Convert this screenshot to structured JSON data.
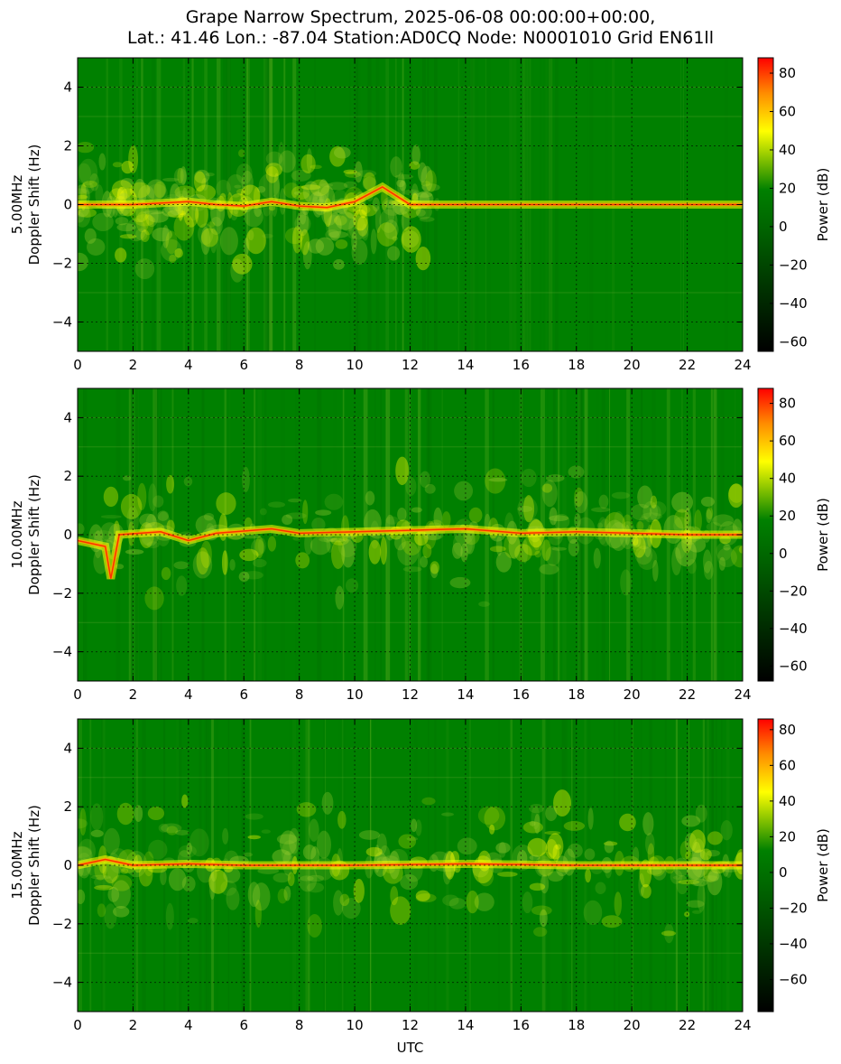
{
  "figure": {
    "title_line1": "Grape Narrow Spectrum, 2025-06-08 00:00:00+00:00,",
    "title_line2": "Lat.: 41.46 Lon.: -87.04 Station:AD0CQ Node: N0001010 Grid EN61ll",
    "xlabel": "UTC"
  },
  "colors": {
    "background": "#008000",
    "colormap": [
      "#000000",
      "#006400",
      "#008000",
      "#ffff00",
      "#ff8c00",
      "#ff0000"
    ]
  },
  "chart_data": [
    {
      "type": "heatmap",
      "name": "5.00MHz",
      "ylabel_line1": "5.00MHz",
      "ylabel_line2": "Doppler Shift (Hz)",
      "colorbar_label": "Power (dB)",
      "xlim": [
        0,
        24
      ],
      "ylim": [
        -5,
        5
      ],
      "xticks": [
        "0",
        "2",
        "4",
        "6",
        "8",
        "10",
        "12",
        "14",
        "16",
        "18",
        "20",
        "22",
        "24"
      ],
      "yticks": [
        "−4",
        "−2",
        "0",
        "2",
        "4"
      ],
      "clim": [
        -65,
        88
      ],
      "cticks": [
        "−60",
        "−40",
        "−20",
        "0",
        "20",
        "40",
        "60",
        "80"
      ],
      "grid": true,
      "trace": [
        [
          0,
          0
        ],
        [
          2,
          0
        ],
        [
          3,
          0.05
        ],
        [
          4,
          0.1
        ],
        [
          5,
          0.0
        ],
        [
          6,
          -0.05
        ],
        [
          7,
          0.1
        ],
        [
          8,
          -0.05
        ],
        [
          9,
          -0.1
        ],
        [
          10,
          0.1
        ],
        [
          11,
          0.6
        ],
        [
          12,
          0
        ],
        [
          24,
          0
        ]
      ],
      "active_until": 13
    },
    {
      "type": "heatmap",
      "name": "10.00MHz",
      "ylabel_line1": "10.00MHz",
      "ylabel_line2": "Doppler Shift (Hz)",
      "colorbar_label": "Power (dB)",
      "xlim": [
        0,
        24
      ],
      "ylim": [
        -5,
        5
      ],
      "xticks": [
        "0",
        "2",
        "4",
        "6",
        "8",
        "10",
        "12",
        "14",
        "16",
        "18",
        "20",
        "22",
        "24"
      ],
      "yticks": [
        "−4",
        "−2",
        "0",
        "2",
        "4"
      ],
      "clim": [
        -68,
        88
      ],
      "cticks": [
        "−60",
        "−40",
        "−20",
        "0",
        "20",
        "40",
        "60",
        "80"
      ],
      "grid": true,
      "trace": [
        [
          0,
          -0.2
        ],
        [
          1,
          -0.4
        ],
        [
          1.2,
          -1.5
        ],
        [
          1.5,
          0
        ],
        [
          3,
          0.1
        ],
        [
          4,
          -0.2
        ],
        [
          5,
          0.05
        ],
        [
          7,
          0.2
        ],
        [
          8,
          0.05
        ],
        [
          12,
          0.15
        ],
        [
          14,
          0.2
        ],
        [
          16,
          0.05
        ],
        [
          18,
          0.1
        ],
        [
          20,
          0.05
        ],
        [
          22,
          0
        ],
        [
          24,
          0
        ]
      ],
      "active_until": 24
    },
    {
      "type": "heatmap",
      "name": "15.00MHz",
      "ylabel_line1": "15.00MHz",
      "ylabel_line2": "Doppler Shift (Hz)",
      "colorbar_label": "Power (dB)",
      "xlim": [
        0,
        24
      ],
      "ylim": [
        -5,
        5
      ],
      "xticks": [
        "0",
        "2",
        "4",
        "6",
        "8",
        "10",
        "12",
        "14",
        "16",
        "18",
        "20",
        "22",
        "24"
      ],
      "yticks": [
        "−4",
        "−2",
        "0",
        "2",
        "4"
      ],
      "clim": [
        -78,
        86
      ],
      "cticks": [
        "−60",
        "−40",
        "−20",
        "0",
        "20",
        "40",
        "60",
        "80"
      ],
      "grid": true,
      "trace": [
        [
          0,
          0
        ],
        [
          1,
          0.2
        ],
        [
          2,
          0
        ],
        [
          4,
          0.05
        ],
        [
          6,
          0
        ],
        [
          10,
          0
        ],
        [
          14,
          0.05
        ],
        [
          18,
          0
        ],
        [
          24,
          0
        ]
      ],
      "active_until": 24
    }
  ]
}
